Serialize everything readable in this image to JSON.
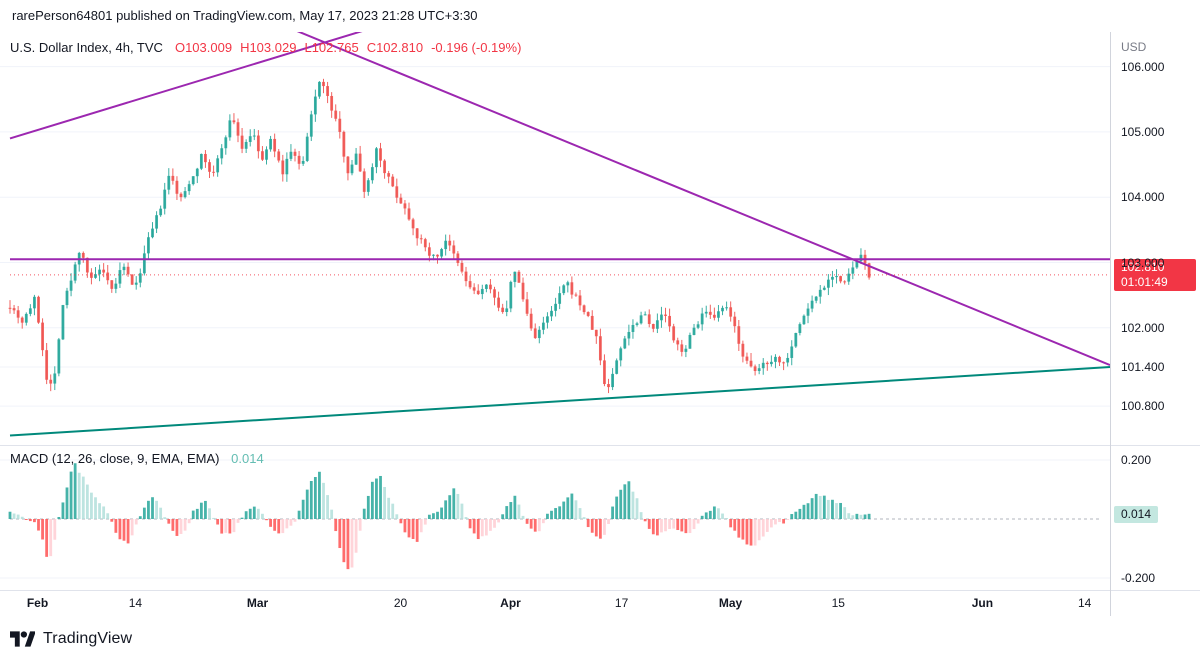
{
  "attribution": "rarePerson64801 published on TradingView.com, May 17, 2023 21:28 UTC+3:30",
  "legend": {
    "symbol": "U.S. Dollar Index, 4h, TVC",
    "o_label": "O",
    "o": "103.009",
    "h_label": "H",
    "h": "103.029",
    "l_label": "L",
    "l": "102.765",
    "c_label": "C",
    "c": "102.810",
    "change": "-0.196 (-0.19%)"
  },
  "price_axis": {
    "currency": "USD",
    "labels": [
      {
        "text": "106.000",
        "price": 106.0
      },
      {
        "text": "105.000",
        "price": 105.0
      },
      {
        "text": "104.000",
        "price": 104.0
      },
      {
        "text": "103.000",
        "price": 103.0
      },
      {
        "text": "102.000",
        "price": 102.0
      },
      {
        "text": "101.400",
        "price": 101.4
      },
      {
        "text": "100.800",
        "price": 100.8
      }
    ],
    "badge": {
      "price": "102.810",
      "countdown": "01:01:49"
    }
  },
  "macd_panel": {
    "title": "MACD (12, 26, close, 9, EMA, EMA)",
    "value_label": "0.014",
    "axis_labels": [
      {
        "text": "0.200",
        "value": 0.2
      },
      {
        "text": "-0.200",
        "value": -0.2
      }
    ],
    "badge": {
      "text": "0.014",
      "value": 0.014
    }
  },
  "time_axis": {
    "labels": [
      {
        "text": "Feb",
        "f": 0.025,
        "major": true
      },
      {
        "text": "14",
        "f": 0.114,
        "major": false
      },
      {
        "text": "Mar",
        "f": 0.225,
        "major": true
      },
      {
        "text": "20",
        "f": 0.355,
        "major": false
      },
      {
        "text": "Apr",
        "f": 0.455,
        "major": true
      },
      {
        "text": "17",
        "f": 0.556,
        "major": false
      },
      {
        "text": "May",
        "f": 0.655,
        "major": true
      },
      {
        "text": "15",
        "f": 0.753,
        "major": false
      },
      {
        "text": "Jun",
        "f": 0.884,
        "major": true
      },
      {
        "text": "14",
        "f": 0.977,
        "major": false
      }
    ]
  },
  "footer": {
    "brand": "TradingView"
  },
  "colors": {
    "up": "#26a69a",
    "down": "#ef5350",
    "trend_purple": "#9c27b0",
    "trend_teal": "#00897b",
    "price_line": "#f23645",
    "price_badge_bg": "#f23645",
    "macd_badge_bg": "#c3e7e0",
    "macd_grow_above": "#26a69a",
    "macd_fall_above": "#b2dfdb",
    "macd_fall_below": "#ff5252",
    "macd_grow_below": "#ffcdd2",
    "grid": "#f0f3fa",
    "zero_line": "#b2b5be"
  },
  "chart_data": {
    "type": "candlestick",
    "symbol": "U.S. Dollar Index",
    "interval": "4h",
    "exchange": "TVC",
    "current_bar": {
      "open": 103.009,
      "high": 103.029,
      "low": 102.765,
      "close": 102.81,
      "change": -0.196,
      "change_pct": -0.19
    },
    "price_axis_ticks": [
      106.0,
      105.0,
      104.0,
      103.0,
      102.0,
      101.4,
      100.8
    ],
    "visible_price_range": [
      100.2,
      106.53
    ],
    "time_ticks": [
      "Feb",
      "14",
      "Mar",
      "20",
      "Apr",
      "17",
      "May",
      "15",
      "Jun",
      "14"
    ],
    "current_price_line": 102.81,
    "last_bar_f": 0.781,
    "bars_rendered": 212,
    "trendlines": [
      {
        "name": "ascending-resistance",
        "colorKey": "trend_purple",
        "from": [
          0.0,
          104.9
        ],
        "to": [
          0.331,
          106.6
        ]
      },
      {
        "name": "descending-resistance",
        "colorKey": "trend_purple",
        "from": [
          0.253,
          106.6
        ],
        "to": [
          1.0,
          101.43
        ]
      },
      {
        "name": "horizontal-level",
        "colorKey": "trend_purple",
        "from": [
          0.0,
          103.05
        ],
        "to": [
          1.0,
          103.05
        ]
      },
      {
        "name": "ascending-support",
        "colorKey": "trend_teal",
        "from": [
          0.0,
          100.35
        ],
        "to": [
          1.0,
          101.4
        ]
      }
    ],
    "price_path": [
      [
        0.0,
        102.35
      ],
      [
        0.011,
        102.1
      ],
      [
        0.023,
        102.45
      ],
      [
        0.035,
        101.05
      ],
      [
        0.041,
        101.3
      ],
      [
        0.047,
        102.3
      ],
      [
        0.056,
        102.75
      ],
      [
        0.064,
        103.25
      ],
      [
        0.073,
        102.7
      ],
      [
        0.082,
        102.9
      ],
      [
        0.093,
        102.55
      ],
      [
        0.102,
        102.95
      ],
      [
        0.114,
        102.6
      ],
      [
        0.125,
        103.3
      ],
      [
        0.136,
        103.8
      ],
      [
        0.145,
        104.35
      ],
      [
        0.155,
        103.95
      ],
      [
        0.165,
        104.3
      ],
      [
        0.175,
        104.65
      ],
      [
        0.184,
        104.3
      ],
      [
        0.193,
        104.8
      ],
      [
        0.202,
        105.25
      ],
      [
        0.211,
        104.75
      ],
      [
        0.22,
        105.0
      ],
      [
        0.229,
        104.55
      ],
      [
        0.238,
        104.9
      ],
      [
        0.247,
        104.35
      ],
      [
        0.256,
        104.75
      ],
      [
        0.265,
        104.4
      ],
      [
        0.275,
        105.35
      ],
      [
        0.282,
        105.85
      ],
      [
        0.289,
        105.5
      ],
      [
        0.298,
        105.1
      ],
      [
        0.307,
        104.4
      ],
      [
        0.315,
        104.65
      ],
      [
        0.323,
        104.05
      ],
      [
        0.333,
        104.75
      ],
      [
        0.342,
        104.35
      ],
      [
        0.351,
        104.05
      ],
      [
        0.36,
        103.8
      ],
      [
        0.369,
        103.45
      ],
      [
        0.378,
        103.2
      ],
      [
        0.387,
        103.05
      ],
      [
        0.396,
        103.35
      ],
      [
        0.405,
        103.05
      ],
      [
        0.415,
        102.7
      ],
      [
        0.424,
        102.5
      ],
      [
        0.433,
        102.65
      ],
      [
        0.442,
        102.4
      ],
      [
        0.451,
        102.2
      ],
      [
        0.458,
        102.95
      ],
      [
        0.467,
        102.4
      ],
      [
        0.476,
        101.85
      ],
      [
        0.485,
        102.05
      ],
      [
        0.496,
        102.35
      ],
      [
        0.505,
        102.7
      ],
      [
        0.515,
        102.45
      ],
      [
        0.524,
        102.2
      ],
      [
        0.533,
        101.85
      ],
      [
        0.542,
        101.0
      ],
      [
        0.549,
        101.35
      ],
      [
        0.558,
        101.85
      ],
      [
        0.567,
        102.05
      ],
      [
        0.576,
        102.25
      ],
      [
        0.585,
        102.0
      ],
      [
        0.595,
        102.25
      ],
      [
        0.604,
        101.75
      ],
      [
        0.613,
        101.65
      ],
      [
        0.622,
        102.0
      ],
      [
        0.631,
        102.25
      ],
      [
        0.64,
        102.1
      ],
      [
        0.649,
        102.35
      ],
      [
        0.658,
        102.05
      ],
      [
        0.667,
        101.55
      ],
      [
        0.676,
        101.3
      ],
      [
        0.685,
        101.45
      ],
      [
        0.695,
        101.55
      ],
      [
        0.704,
        101.45
      ],
      [
        0.713,
        101.85
      ],
      [
        0.722,
        102.2
      ],
      [
        0.731,
        102.45
      ],
      [
        0.74,
        102.65
      ],
      [
        0.749,
        102.85
      ],
      [
        0.758,
        102.65
      ],
      [
        0.767,
        102.95
      ],
      [
        0.775,
        103.1
      ],
      [
        0.781,
        102.81
      ]
    ],
    "macd": {
      "title": "MACD (12, 26, close, 9, EMA, EMA)",
      "current_value": 0.014,
      "axis_ticks": [
        0.2,
        -0.2
      ],
      "path": [
        [
          0.0,
          0.02
        ],
        [
          0.014,
          0.0
        ],
        [
          0.023,
          -0.01
        ],
        [
          0.029,
          -0.06
        ],
        [
          0.035,
          -0.15
        ],
        [
          0.042,
          -0.05
        ],
        [
          0.045,
          0.02
        ],
        [
          0.053,
          0.12
        ],
        [
          0.058,
          0.19
        ],
        [
          0.065,
          0.15
        ],
        [
          0.075,
          0.08
        ],
        [
          0.085,
          0.04
        ],
        [
          0.091,
          0.0
        ],
        [
          0.098,
          -0.06
        ],
        [
          0.107,
          -0.08
        ],
        [
          0.115,
          -0.02
        ],
        [
          0.12,
          0.03
        ],
        [
          0.129,
          0.08
        ],
        [
          0.138,
          0.03
        ],
        [
          0.144,
          -0.02
        ],
        [
          0.153,
          -0.06
        ],
        [
          0.162,
          -0.03
        ],
        [
          0.167,
          0.03
        ],
        [
          0.177,
          0.06
        ],
        [
          0.185,
          0.01
        ],
        [
          0.193,
          -0.05
        ],
        [
          0.204,
          -0.04
        ],
        [
          0.214,
          0.03
        ],
        [
          0.225,
          0.04
        ],
        [
          0.235,
          -0.02
        ],
        [
          0.247,
          -0.05
        ],
        [
          0.258,
          -0.02
        ],
        [
          0.264,
          0.04
        ],
        [
          0.275,
          0.14
        ],
        [
          0.282,
          0.16
        ],
        [
          0.291,
          0.06
        ],
        [
          0.296,
          -0.04
        ],
        [
          0.304,
          -0.15
        ],
        [
          0.309,
          -0.19
        ],
        [
          0.316,
          -0.1
        ],
        [
          0.321,
          0.02
        ],
        [
          0.329,
          0.12
        ],
        [
          0.336,
          0.15
        ],
        [
          0.345,
          0.07
        ],
        [
          0.353,
          0.01
        ],
        [
          0.36,
          -0.05
        ],
        [
          0.369,
          -0.08
        ],
        [
          0.376,
          -0.03
        ],
        [
          0.382,
          0.02
        ],
        [
          0.389,
          0.03
        ],
        [
          0.396,
          0.06
        ],
        [
          0.404,
          0.11
        ],
        [
          0.411,
          0.05
        ],
        [
          0.418,
          -0.03
        ],
        [
          0.427,
          -0.07
        ],
        [
          0.438,
          -0.04
        ],
        [
          0.445,
          -0.01
        ],
        [
          0.453,
          0.05
        ],
        [
          0.46,
          0.08
        ],
        [
          0.465,
          0.02
        ],
        [
          0.471,
          -0.03
        ],
        [
          0.48,
          -0.05
        ],
        [
          0.487,
          0.01
        ],
        [
          0.495,
          0.03
        ],
        [
          0.504,
          0.06
        ],
        [
          0.511,
          0.09
        ],
        [
          0.518,
          0.04
        ],
        [
          0.525,
          -0.03
        ],
        [
          0.535,
          -0.07
        ],
        [
          0.542,
          -0.05
        ],
        [
          0.547,
          0.04
        ],
        [
          0.555,
          0.1
        ],
        [
          0.562,
          0.13
        ],
        [
          0.571,
          0.06
        ],
        [
          0.578,
          -0.02
        ],
        [
          0.587,
          -0.06
        ],
        [
          0.596,
          -0.04
        ],
        [
          0.605,
          -0.03
        ],
        [
          0.616,
          -0.05
        ],
        [
          0.625,
          -0.02
        ],
        [
          0.631,
          0.02
        ],
        [
          0.64,
          0.04
        ],
        [
          0.649,
          0.02
        ],
        [
          0.656,
          -0.03
        ],
        [
          0.665,
          -0.07
        ],
        [
          0.675,
          -0.1
        ],
        [
          0.684,
          -0.06
        ],
        [
          0.695,
          -0.02
        ],
        [
          0.704,
          -0.01
        ],
        [
          0.711,
          0.02
        ],
        [
          0.722,
          0.05
        ],
        [
          0.733,
          0.08
        ],
        [
          0.744,
          0.07
        ],
        [
          0.755,
          0.05
        ],
        [
          0.764,
          0.02
        ],
        [
          0.771,
          0.01
        ],
        [
          0.781,
          0.014
        ]
      ]
    }
  }
}
